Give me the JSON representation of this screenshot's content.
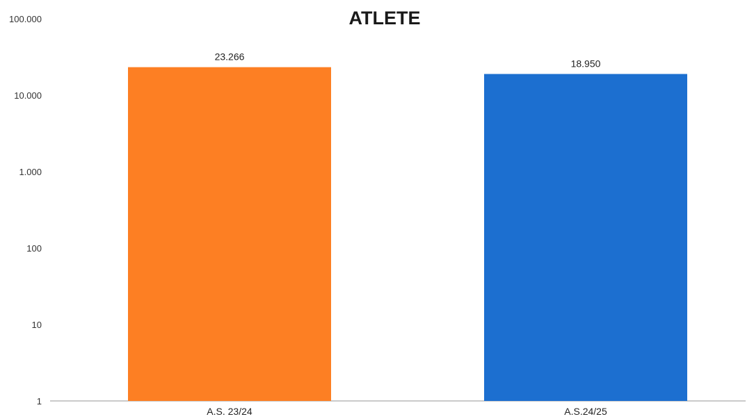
{
  "chart_data": {
    "type": "bar",
    "title": "ATLETE",
    "xlabel": "",
    "ylabel": "",
    "yscale": "log",
    "ylim": [
      1,
      100000
    ],
    "grid": false,
    "legend": "none",
    "y_ticks": [
      {
        "value": 1,
        "label": "1"
      },
      {
        "value": 10,
        "label": "10"
      },
      {
        "value": 100,
        "label": "100"
      },
      {
        "value": 1000,
        "label": "1.000"
      },
      {
        "value": 10000,
        "label": "10.000"
      },
      {
        "value": 100000,
        "label": "100.000"
      }
    ],
    "categories": [
      "A.S. 23/24",
      "A.S.24/25"
    ],
    "values": [
      23266,
      18950
    ],
    "data_labels": [
      "23.266",
      "18.950"
    ],
    "colors": [
      "#fd7f23",
      "#1c6fd0"
    ],
    "axis_color": "#b8b8b8"
  }
}
